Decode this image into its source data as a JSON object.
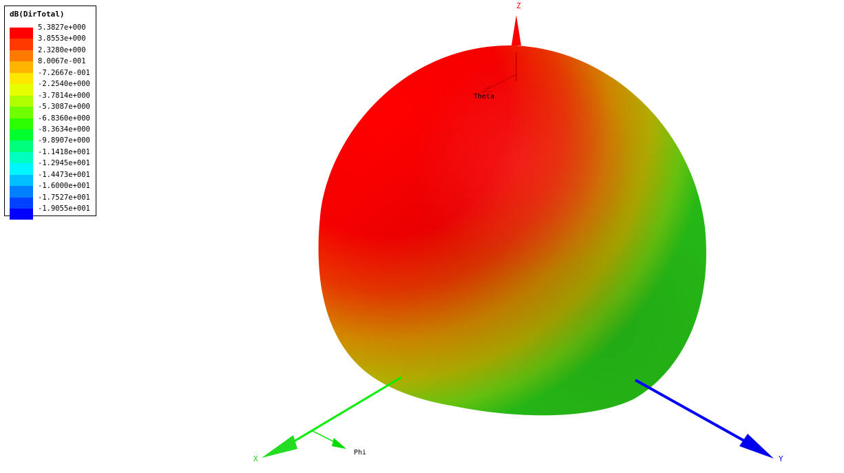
{
  "legend": {
    "title": "dB(DirTotal)",
    "entries": [
      {
        "label": "5.3827e+000",
        "color": "#ff0000"
      },
      {
        "label": "3.8553e+000",
        "color": "#ff3a00"
      },
      {
        "label": "2.3280e+000",
        "color": "#ff7a00"
      },
      {
        "label": "8.0067e-001",
        "color": "#ffb500"
      },
      {
        "label": "-7.2667e-001",
        "color": "#ffe800"
      },
      {
        "label": "-2.2540e+000",
        "color": "#e5ff00"
      },
      {
        "label": "-3.7814e+000",
        "color": "#b0ff00"
      },
      {
        "label": "-5.3087e+000",
        "color": "#70ff00"
      },
      {
        "label": "-6.8360e+000",
        "color": "#2bff00"
      },
      {
        "label": "-8.3634e+000",
        "color": "#00ff2c"
      },
      {
        "label": "-9.8907e+000",
        "color": "#00ff7a"
      },
      {
        "label": "-1.1418e+001",
        "color": "#00ffc0"
      },
      {
        "label": "-1.2945e+001",
        "color": "#00f5ff"
      },
      {
        "label": "-1.4473e+001",
        "color": "#00bfff"
      },
      {
        "label": "-1.6000e+001",
        "color": "#0080ff"
      },
      {
        "label": "-1.7527e+001",
        "color": "#0042ff"
      },
      {
        "label": "-1.9055e+001",
        "color": "#0000ff"
      }
    ]
  },
  "chart_data": {
    "type": "surface-3d-radiation-pattern",
    "quantity": "dB(DirTotal)",
    "range": [
      -19.055,
      5.3827
    ],
    "axes": [
      {
        "name": "Z",
        "color": "#ff0000"
      },
      {
        "name": "X",
        "color": "#00ff00"
      },
      {
        "name": "Y",
        "color": "#0000ff"
      }
    ],
    "angle_labels": [
      "Theta",
      "Phi"
    ]
  }
}
